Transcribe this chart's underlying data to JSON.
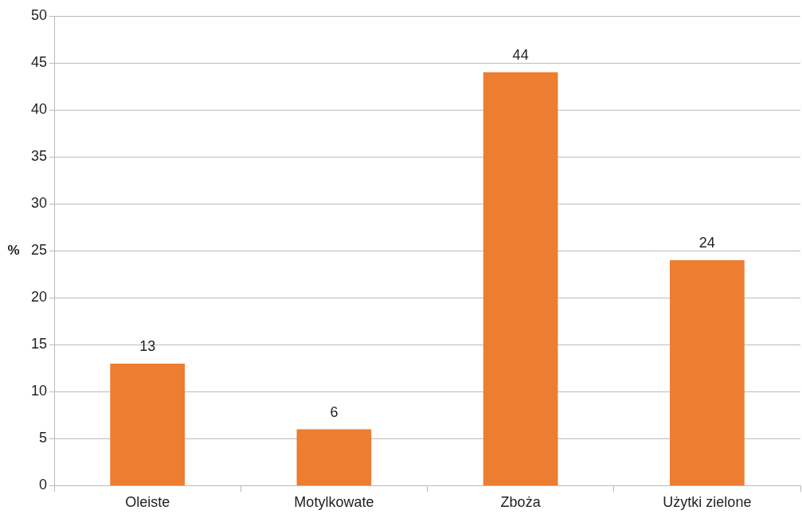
{
  "chart_data": {
    "type": "bar",
    "ylabel": "%",
    "categories": [
      "Oleiste",
      "Motylkowate",
      "Zboża",
      "Użytki zielone"
    ],
    "values": [
      13,
      6,
      44,
      24
    ],
    "color": "#ed7d31",
    "ylim": [
      0,
      50
    ],
    "yticks": [
      0,
      5,
      10,
      15,
      20,
      25,
      30,
      35,
      40,
      45,
      50
    ],
    "grid": "y",
    "legend": false,
    "data_labels": true
  }
}
